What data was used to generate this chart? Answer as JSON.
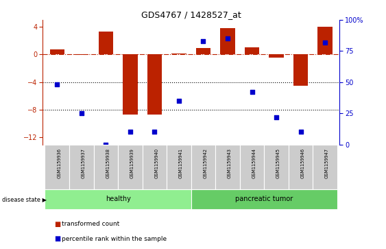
{
  "title": "GDS4767 / 1428527_at",
  "samples": [
    "GSM1159936",
    "GSM1159937",
    "GSM1159938",
    "GSM1159939",
    "GSM1159940",
    "GSM1159941",
    "GSM1159942",
    "GSM1159943",
    "GSM1159944",
    "GSM1159945",
    "GSM1159946",
    "GSM1159947"
  ],
  "bar_values": [
    0.7,
    -0.1,
    3.3,
    -8.7,
    -8.7,
    0.1,
    0.9,
    3.8,
    1.0,
    -0.5,
    -4.5,
    4.0
  ],
  "percentile_values": [
    48,
    25,
    0,
    10,
    10,
    35,
    83,
    85,
    42,
    22,
    10,
    82
  ],
  "bar_color": "#bb2200",
  "dot_color": "#0000cc",
  "ylim_left": [
    -13,
    5
  ],
  "ylim_right": [
    0,
    100
  ],
  "yticks_left": [
    4,
    0,
    -4,
    -8,
    -12
  ],
  "yticks_right": [
    0,
    25,
    50,
    75,
    100
  ],
  "dotted_lines": [
    -4,
    -8
  ],
  "groups": [
    {
      "label": "healthy",
      "start": 0,
      "end": 5,
      "color": "#90ee90"
    },
    {
      "label": "pancreatic tumor",
      "start": 6,
      "end": 11,
      "color": "#66cc66"
    }
  ],
  "legend_items": [
    {
      "label": "transformed count",
      "color": "#bb2200"
    },
    {
      "label": "percentile rank within the sample",
      "color": "#0000cc"
    }
  ],
  "cell_color": "#cccccc",
  "cell_edge": "#ffffff"
}
